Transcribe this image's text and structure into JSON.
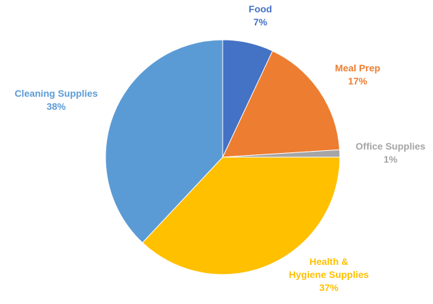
{
  "chart_data": {
    "type": "pie",
    "start_angle_deg": 0,
    "direction": "clockwise",
    "slices": [
      {
        "name": "Food",
        "value": 7,
        "label": "7%",
        "color": "#4472C4"
      },
      {
        "name": "Meal Prep",
        "value": 17,
        "label": "17%",
        "color": "#ED7D31"
      },
      {
        "name": "Office Supplies",
        "value": 1,
        "label": "1%",
        "color": "#A5A5A5"
      },
      {
        "name": "Health & Hygiene Supplies",
        "value": 37,
        "label": "37%",
        "color": "#FFC000"
      },
      {
        "name": "Cleaning Supplies",
        "value": 38,
        "label": "38%",
        "color": "#5B9BD5"
      }
    ],
    "label_lines": [
      [
        "Food"
      ],
      [
        "Meal Prep"
      ],
      [
        "Office Supplies"
      ],
      [
        "Health &",
        "Hygiene Supplies"
      ],
      [
        "Cleaning Supplies"
      ]
    ],
    "legend": "none",
    "data_labels": "outside"
  }
}
